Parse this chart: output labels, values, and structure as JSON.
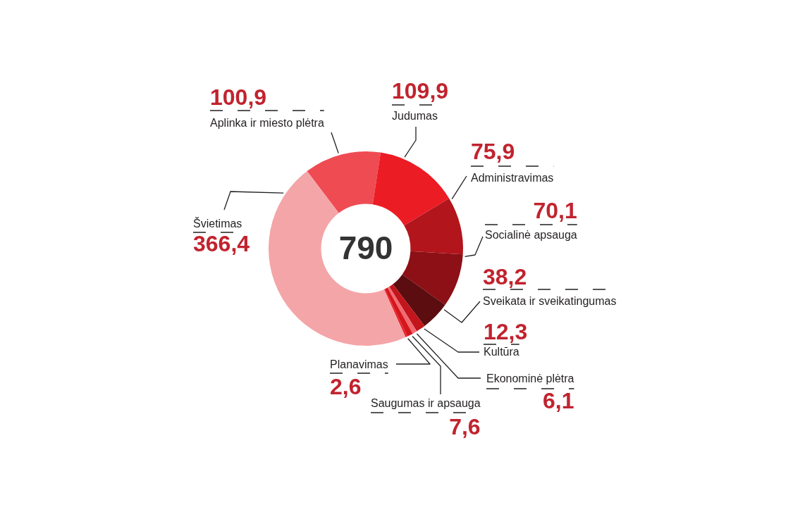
{
  "chart_data": {
    "type": "donut",
    "categories": [
      "Aplinka ir miesto plėtra",
      "Judumas",
      "Administravimas",
      "Socialinė apsauga",
      "Sveikata ir sveikatingumas",
      "Kultūra",
      "Ekonominė plėtra",
      "Saugumas ir apsauga",
      "Planavimas",
      "Švietimas"
    ],
    "values": [
      100.9,
      109.9,
      75.9,
      70.1,
      38.2,
      12.3,
      6.1,
      7.6,
      2.6,
      366.4
    ],
    "value_labels": [
      "100,9",
      "109,9",
      "75,9",
      "70,1",
      "38,2",
      "12,3",
      "6,1",
      "7,6",
      "2,6",
      "366,4"
    ],
    "colors": [
      "#ef4b53",
      "#ec1c24",
      "#b3151c",
      "#8c1015",
      "#5b0d10",
      "#c2151c",
      "#f26a70",
      "#d4161d",
      "#ee1c25",
      "#f4a5a8"
    ],
    "annotations": [
      "790"
    ]
  }
}
